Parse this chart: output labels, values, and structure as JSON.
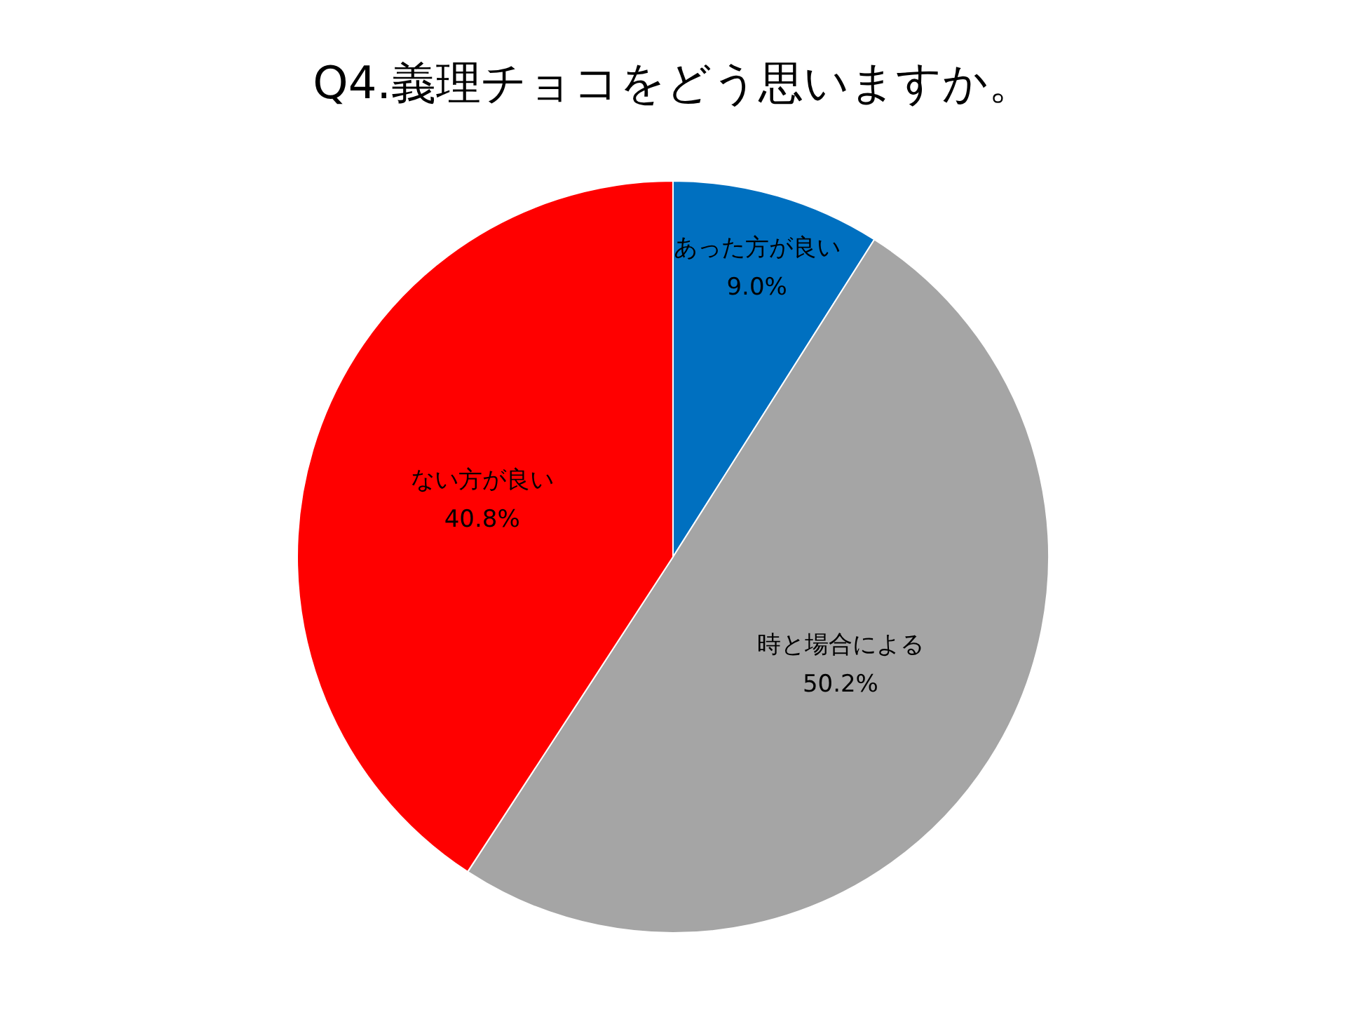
{
  "chart_data": {
    "type": "pie",
    "title": "Q4.義理チョコをどう思いますか。",
    "categories": [
      "あった方が良い",
      "時と場合による",
      "ない方が良い"
    ],
    "values": [
      9.0,
      50.2,
      40.8
    ],
    "colors": [
      "#0070c0",
      "#a5a5a5",
      "#ff0000"
    ],
    "value_labels": [
      "9.0%",
      "50.2%",
      "40.8%"
    ],
    "legend": false
  }
}
